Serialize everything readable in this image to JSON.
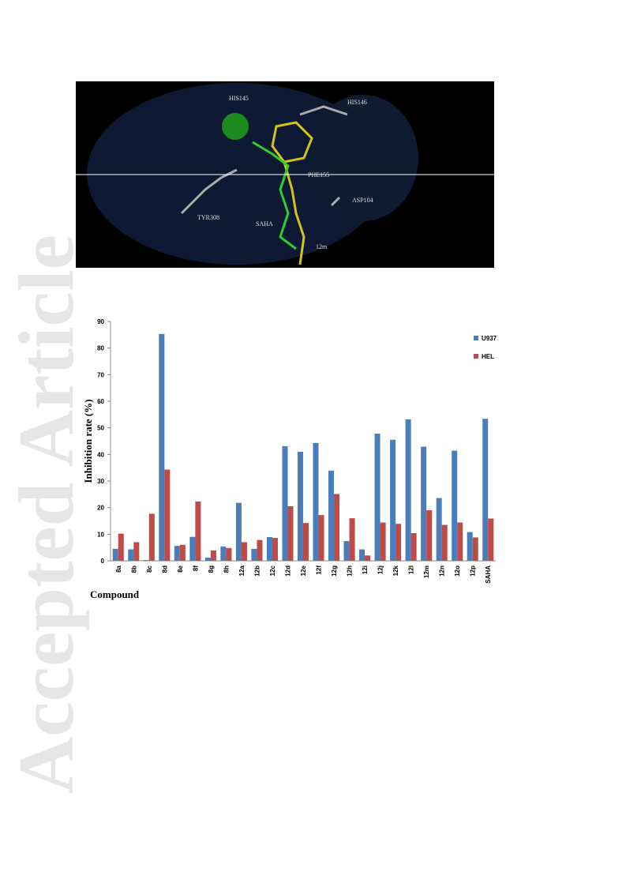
{
  "watermark": "Accepted Article",
  "figure": {
    "labels": [
      "HIS145",
      "HIS146",
      "PHE155",
      "ASP104",
      "TYR308",
      "SAHA",
      "12m"
    ]
  },
  "chart_data": {
    "type": "bar",
    "y_label": "Inhibition rate (%)",
    "x_label": "Compound",
    "categories": [
      "8a",
      "8b",
      "8c",
      "8d",
      "8e",
      "8f",
      "8g",
      "8h",
      "12a",
      "12b",
      "12c",
      "12d",
      "12e",
      "12f",
      "12g",
      "12h",
      "12i",
      "12j",
      "12k",
      "12l",
      "12m",
      "12n",
      "12o",
      "12p",
      "SAHA"
    ],
    "series": [
      {
        "name": "U937",
        "color": "#4a7ebb",
        "values": [
          4.5,
          4.3,
          0.3,
          85.3,
          5.6,
          9,
          1.2,
          5.4,
          21.8,
          4.5,
          8.9,
          43.1,
          41,
          44.3,
          33.9,
          7.4,
          4.3,
          47.8,
          45.5,
          53.2,
          42.9,
          23.6,
          41.4,
          10.8,
          53.4
        ]
      },
      {
        "name": "HEL",
        "color": "#be4b48",
        "values": [
          10.2,
          7,
          17.7,
          34.3,
          6,
          22.3,
          3.9,
          4.8,
          7,
          7.8,
          8.6,
          20.5,
          14.2,
          17.2,
          25.1,
          16,
          2,
          14.4,
          13.9,
          10.4,
          19,
          13.5,
          14.4,
          8.8,
          15.9
        ]
      }
    ],
    "ylim": [
      0,
      90
    ],
    "yticks": [
      0,
      10,
      20,
      30,
      40,
      50,
      60,
      70,
      80,
      90
    ],
    "grid": false,
    "legend": "top-right"
  }
}
